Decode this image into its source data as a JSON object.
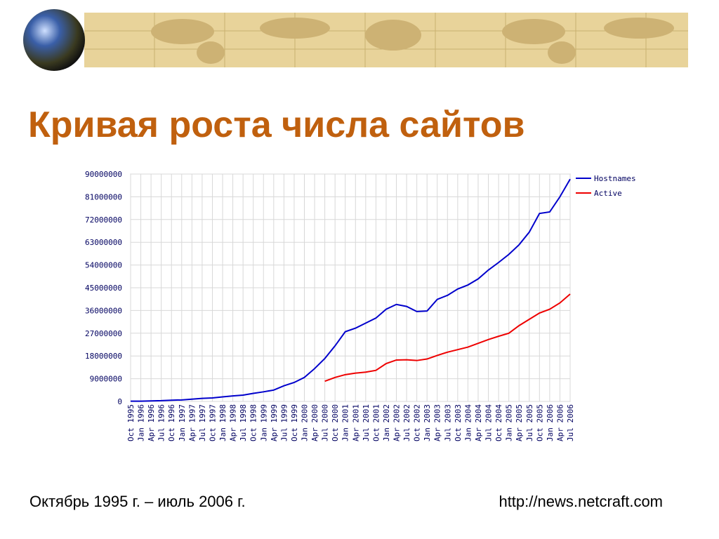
{
  "title": "Кривая роста числа сайтов",
  "footer": {
    "period": "Октябрь 1995 г. – июль 2006 г.",
    "source": "http://news.netcraft.com"
  },
  "chart_data": {
    "type": "line",
    "categories": [
      "Oct 1995",
      "Jan 1996",
      "Apr 1996",
      "Jul 1996",
      "Oct 1996",
      "Jan 1997",
      "Apr 1997",
      "Jul 1997",
      "Oct 1997",
      "Jan 1998",
      "Apr 1998",
      "Jul 1998",
      "Oct 1998",
      "Jan 1999",
      "Apr 1999",
      "Jul 1999",
      "Oct 1999",
      "Jan 2000",
      "Apr 2000",
      "Jul 2000",
      "Oct 2000",
      "Jan 2001",
      "Apr 2001",
      "Jul 2001",
      "Oct 2001",
      "Jan 2002",
      "Apr 2002",
      "Jul 2002",
      "Oct 2002",
      "Jan 2003",
      "Apr 2003",
      "Jul 2003",
      "Oct 2003",
      "Jan 2004",
      "Apr 2004",
      "Jul 2004",
      "Oct 2004",
      "Jan 2005",
      "Apr 2005",
      "Jul 2005",
      "Oct 2005",
      "Jan 2006",
      "Apr 2006",
      "Jul 2006"
    ],
    "series": [
      {
        "name": "Hostnames",
        "color": "#0000cc",
        "values": [
          100000,
          100000,
          200000,
          300000,
          500000,
          600000,
          900000,
          1200000,
          1400000,
          1800000,
          2200000,
          2500000,
          3200000,
          3800000,
          4500000,
          6200000,
          7500000,
          9500000,
          13000000,
          17000000,
          22000000,
          27600000,
          29000000,
          31000000,
          33000000,
          36500000,
          38400000,
          37600000,
          35600000,
          35800000,
          40400000,
          42000000,
          44500000,
          46100000,
          48500000,
          52000000,
          55000000,
          58200000,
          62000000,
          67000000,
          74400000,
          75000000,
          81000000,
          88000000
        ]
      },
      {
        "name": "Active",
        "color": "#ee0000",
        "values": [
          null,
          null,
          null,
          null,
          null,
          null,
          null,
          null,
          null,
          null,
          null,
          null,
          null,
          null,
          null,
          null,
          null,
          null,
          null,
          8000000,
          9500000,
          10600000,
          11200000,
          11600000,
          12300000,
          15000000,
          16400000,
          16500000,
          16200000,
          16800000,
          18200000,
          19500000,
          20500000,
          21500000,
          23000000,
          24500000,
          25800000,
          27000000,
          30000000,
          32500000,
          35000000,
          36500000,
          39000000,
          42500000
        ]
      }
    ],
    "ylim": [
      0,
      90000000
    ],
    "yticks": [
      0,
      9000000,
      18000000,
      27000000,
      36000000,
      45000000,
      54000000,
      63000000,
      72000000,
      81000000,
      90000000
    ],
    "grid": true,
    "legend": "right"
  }
}
